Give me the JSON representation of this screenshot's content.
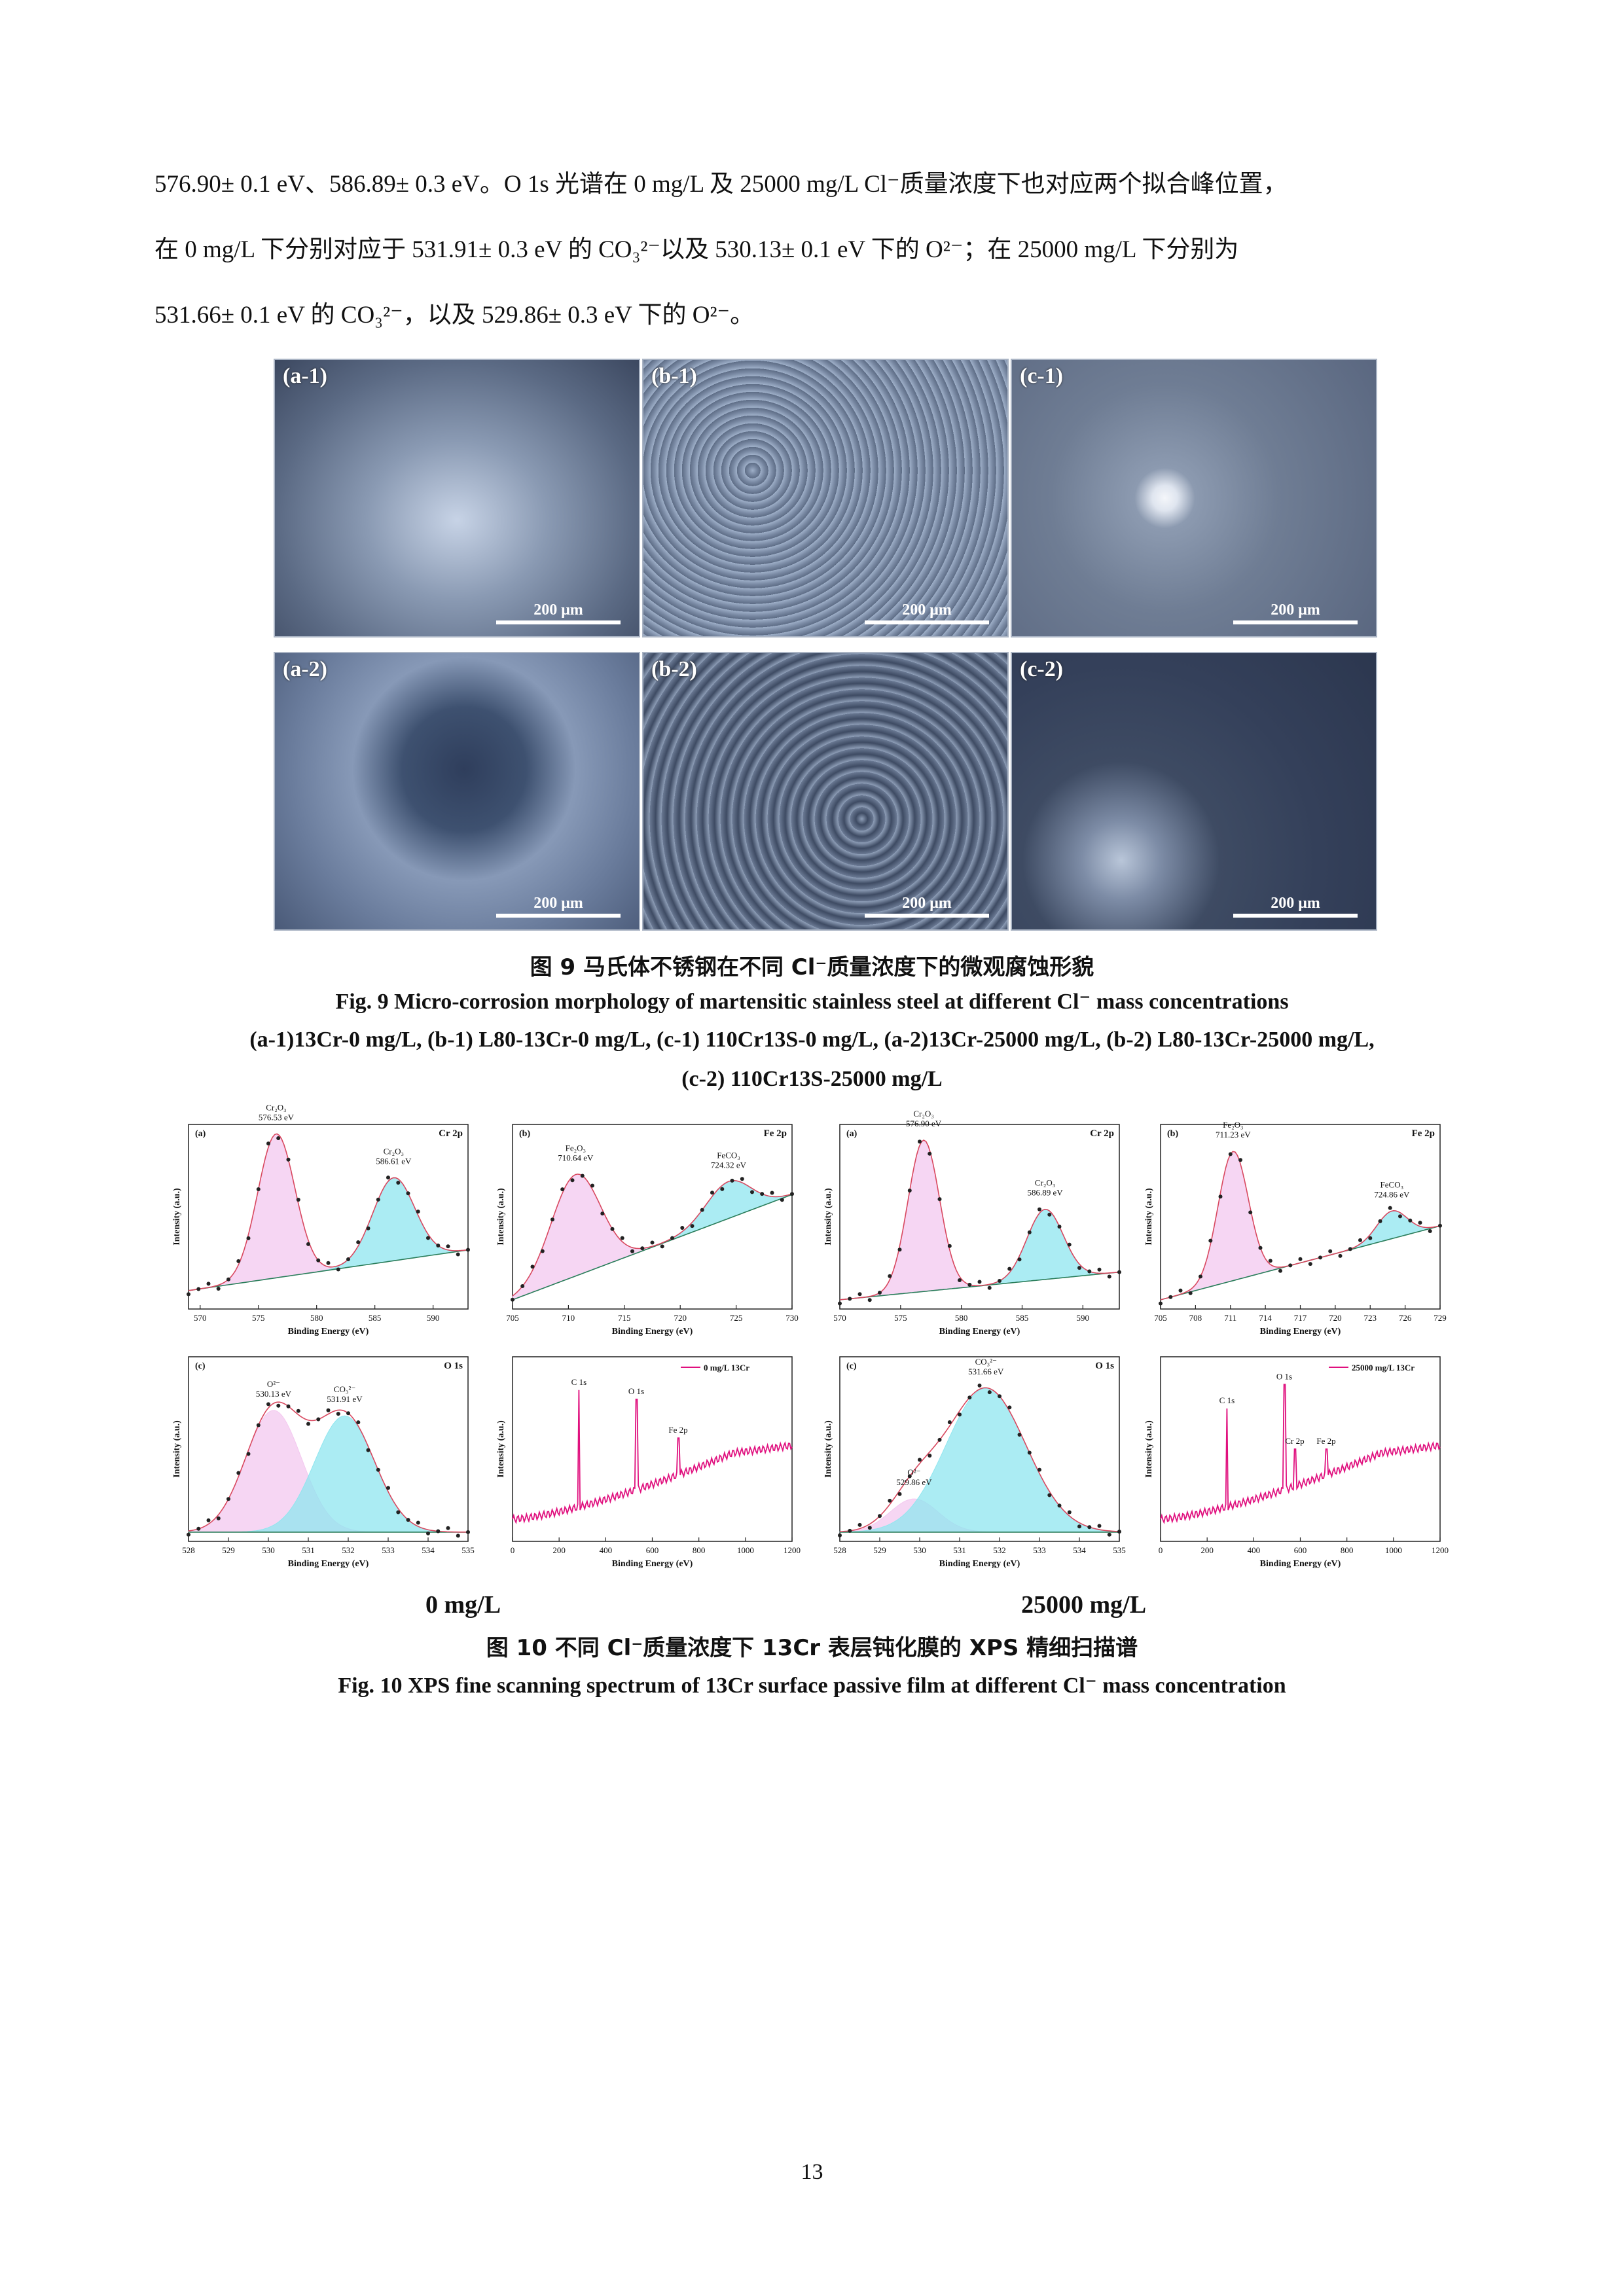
{
  "text": {
    "line1": "576.90± 0.1 eV、586.89± 0.3 eV。O 1s 光谱在 0 mg/L 及 25000 mg/L Cl⁻质量浓度下也对应两个拟合峰位置，",
    "line2": "在 0  mg/L 下分别对应于 531.91±  0.3  eV 的 CO₃²⁻以及 530.13±  0.1  eV 下的 O²⁻；在 25000  mg/L  下分别为",
    "line3": "531.66± 0.1 eV 的 CO₃²⁻，以及 529.86± 0.3 eV 下的 O²⁻。"
  },
  "fig9": {
    "panels": [
      {
        "label": "(a-1)",
        "scale": "200 μm"
      },
      {
        "label": "(b-1)",
        "scale": "200 μm"
      },
      {
        "label": "(c-1)",
        "scale": "200 μm"
      },
      {
        "label": "(a-2)",
        "scale": "200 μm"
      },
      {
        "label": "(b-2)",
        "scale": "200 μm"
      },
      {
        "label": "(c-2)",
        "scale": "200 μm"
      }
    ],
    "caption_cn": "图 9  马氏体不锈钢在不同 Cl⁻质量浓度下的微观腐蚀形貌",
    "caption_en1": "Fig. 9 Micro-corrosion morphology of martensitic stainless steel at different Cl⁻ mass concentrations",
    "caption_en2": "(a-1)13Cr-0 mg/L, (b-1) L80-13Cr-0 mg/L, (c-1) 110Cr13S-0 mg/L, (a-2)13Cr-25000 mg/L, (b-2) L80-13Cr-25000 mg/L,",
    "caption_en3": "(c-2) 110Cr13S-25000 mg/L"
  },
  "fig10": {
    "caption_cn": "图 10  不同 Cl⁻质量浓度下 13Cr 表层钝化膜的 XPS 精细扫描谱",
    "caption_en": "Fig. 10 XPS fine scanning spectrum of 13Cr surface passive film at different Cl⁻ mass concentration",
    "conc_left": "0 mg/L",
    "conc_right": "25000 mg/L"
  },
  "page_number": "13",
  "chart_data": [
    {
      "type": "line",
      "panel": "(a)",
      "element": "Cr 2p",
      "xlabel": "Binding Energy (eV)",
      "ylabel": "Intensity (a.u.)",
      "xlim": [
        569,
        593
      ],
      "ticks": [
        570,
        575,
        580,
        585,
        590
      ],
      "peaks": [
        {
          "name": "Cr₂O₃",
          "label": "576.53 eV",
          "x": 576.53,
          "h": 0.78,
          "w": 1.6
        },
        {
          "name": "Cr₂O₃",
          "label": "586.61 eV",
          "x": 586.61,
          "h": 0.45,
          "w": 1.8
        }
      ],
      "bg": [
        0.1,
        0.32
      ]
    },
    {
      "type": "line",
      "panel": "(b)",
      "element": "Fe 2p",
      "xlabel": "Binding Energy (eV)",
      "ylabel": "Intensity (a.u.)",
      "xlim": [
        705,
        730
      ],
      "ticks": [
        705,
        710,
        715,
        720,
        725,
        730
      ],
      "peaks": [
        {
          "name": "Fe₂O₃",
          "label": "710.64 eV",
          "x": 710.64,
          "h": 0.55,
          "w": 2.2
        },
        {
          "name": "FeCO₃",
          "label": "724.32 eV",
          "x": 724.32,
          "h": 0.2,
          "w": 2.0
        }
      ],
      "bg": [
        0.05,
        0.62
      ]
    },
    {
      "type": "line",
      "panel": "(a)",
      "element": "Cr 2p",
      "xlabel": "Binding Energy (eV)",
      "ylabel": "Intensity (a.u.)",
      "xlim": [
        570,
        593
      ],
      "ticks": [
        570,
        575,
        580,
        585,
        590
      ],
      "peaks": [
        {
          "name": "Cr₂O₃",
          "label": "576.90 eV",
          "x": 576.9,
          "h": 0.82,
          "w": 1.3
        },
        {
          "name": "Cr₂O₃",
          "label": "586.89 eV",
          "x": 586.89,
          "h": 0.38,
          "w": 1.5
        }
      ],
      "bg": [
        0.05,
        0.2
      ]
    },
    {
      "type": "line",
      "panel": "(b)",
      "element": "Fe 2p",
      "xlabel": "Binding Energy (eV)",
      "ylabel": "Intensity (a.u.)",
      "xlim": [
        705,
        729
      ],
      "ticks": [
        705,
        708,
        711,
        714,
        717,
        720,
        723,
        726,
        729
      ],
      "peaks": [
        {
          "name": "Fe₂O₃",
          "label": "711.23 eV",
          "x": 711.23,
          "h": 0.7,
          "w": 1.3
        },
        {
          "name": "FeCO₃",
          "label": "724.86 eV",
          "x": 724.86,
          "h": 0.15,
          "w": 1.3
        }
      ],
      "bg": [
        0.05,
        0.45
      ]
    },
    {
      "type": "line",
      "panel": "(c)",
      "element": "O 1s",
      "xlabel": "Binding Energy (eV)",
      "ylabel": "Intensity (a.u.)",
      "xlim": [
        528,
        535
      ],
      "ticks": [
        528,
        529,
        530,
        531,
        532,
        533,
        534,
        535
      ],
      "peaks": [
        {
          "name": "O²⁻",
          "label": "530.13 eV",
          "x": 530.13,
          "h": 0.66,
          "w": 0.7
        },
        {
          "name": "CO₃²⁻",
          "label": "531.91 eV",
          "x": 531.91,
          "h": 0.63,
          "w": 0.75
        }
      ],
      "bg": [
        0.05,
        0.05
      ]
    },
    {
      "type": "line",
      "panel": "survey",
      "legend": "0 mg/L 13Cr",
      "xlabel": "Binding Energy (eV)",
      "ylabel": "Intensity (a.u.)",
      "xlim": [
        0,
        1200
      ],
      "ticks": [
        0,
        200,
        400,
        600,
        800,
        1000,
        1200
      ],
      "lines": [
        {
          "label": "C 1s",
          "x": 285,
          "h": 0.82
        },
        {
          "label": "O 1s",
          "x": 531,
          "h": 0.77
        },
        {
          "label": "Fe 2p",
          "x": 711,
          "h": 0.56
        }
      ]
    },
    {
      "type": "line",
      "panel": "(c)",
      "element": "O 1s",
      "xlabel": "Binding Energy (eV)",
      "ylabel": "Intensity (a.u.)",
      "xlim": [
        528,
        535
      ],
      "ticks": [
        528,
        529,
        530,
        531,
        532,
        533,
        534,
        535
      ],
      "peaks": [
        {
          "name": "O²⁻",
          "label": "529.86 eV",
          "x": 529.86,
          "h": 0.18,
          "w": 0.6
        },
        {
          "name": "CO₃²⁻",
          "label": "531.66 eV",
          "x": 531.66,
          "h": 0.78,
          "w": 1.0
        }
      ],
      "bg": [
        0.05,
        0.05
      ]
    },
    {
      "type": "line",
      "panel": "survey",
      "legend": "25000 mg/L 13Cr",
      "xlabel": "Binding Energy (eV)",
      "ylabel": "Intensity (a.u.)",
      "xlim": [
        0,
        1200
      ],
      "ticks": [
        0,
        200,
        400,
        600,
        800,
        1000,
        1200
      ],
      "lines": [
        {
          "label": "C 1s",
          "x": 285,
          "h": 0.72
        },
        {
          "label": "O 1s",
          "x": 531,
          "h": 0.85
        },
        {
          "label": "Cr 2p",
          "x": 576,
          "h": 0.5
        },
        {
          "label": "Fe 2p",
          "x": 711,
          "h": 0.5
        }
      ]
    }
  ]
}
